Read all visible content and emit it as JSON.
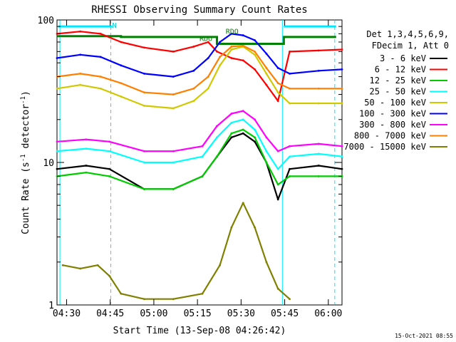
{
  "chart_data": {
    "type": "line",
    "title": "RHESSI Observing Summary Count Rates",
    "xlabel": "Start Time (13-Sep-08 04:26:42)",
    "ylabel_main": "Count Rate (s",
    "ylabel_sup": "-1",
    "ylabel_rest": " detector",
    "ylabel_end": ")",
    "ylog": true,
    "ylim": [
      1,
      100
    ],
    "xlim_minutes_from_start": [
      0,
      98
    ],
    "x_ticks": [
      {
        "label": "04:30",
        "t": 3.3
      },
      {
        "label": "04:45",
        "t": 18.3
      },
      {
        "label": "05:00",
        "t": 33.3
      },
      {
        "label": "05:15",
        "t": 48.3
      },
      {
        "label": "05:30",
        "t": 63.3
      },
      {
        "label": "05:45",
        "t": 78.3
      },
      {
        "label": "06:00",
        "t": 93.3
      }
    ],
    "y_ticks": [
      {
        "label": "1",
        "v": 1
      },
      {
        "label": "10",
        "v": 10
      },
      {
        "label": "100",
        "v": 100
      }
    ],
    "legend_header": [
      "Det 1,3,4,5,6,9,",
      "FDecim 1, Att 0"
    ],
    "legend_position": "right",
    "series": [
      {
        "name": "3 - 6 keV",
        "color": "#000000",
        "points": [
          [
            0,
            9
          ],
          [
            10,
            9.5
          ],
          [
            18,
            9
          ],
          [
            30,
            6.5
          ],
          [
            40,
            6.5
          ],
          [
            50,
            8
          ],
          [
            55,
            11
          ],
          [
            60,
            15
          ],
          [
            64,
            16
          ],
          [
            68,
            14
          ],
          [
            72,
            10
          ],
          [
            76,
            5.5
          ],
          [
            80,
            9
          ],
          [
            90,
            9.5
          ],
          [
            98,
            9
          ]
        ]
      },
      {
        "name": "6 - 12 keV",
        "color": "#ff0000",
        "points": [
          [
            0,
            80
          ],
          [
            8,
            83
          ],
          [
            15,
            80
          ],
          [
            22,
            70
          ],
          [
            30,
            64
          ],
          [
            40,
            60
          ],
          [
            47,
            65
          ],
          [
            52,
            70
          ],
          [
            55,
            60
          ],
          [
            60,
            54
          ],
          [
            64,
            52
          ],
          [
            68,
            45
          ],
          [
            72,
            35
          ],
          [
            76,
            27
          ],
          [
            80,
            60
          ],
          [
            90,
            61
          ],
          [
            98,
            62
          ]
        ]
      },
      {
        "name": "12 - 25 keV",
        "color": "#00cc00",
        "points": [
          [
            0,
            8
          ],
          [
            10,
            8.5
          ],
          [
            18,
            8
          ],
          [
            30,
            6.5
          ],
          [
            40,
            6.5
          ],
          [
            50,
            8
          ],
          [
            55,
            11
          ],
          [
            60,
            16
          ],
          [
            64,
            17
          ],
          [
            68,
            15
          ],
          [
            72,
            10
          ],
          [
            76,
            7
          ],
          [
            80,
            8
          ],
          [
            90,
            8
          ],
          [
            98,
            8
          ]
        ]
      },
      {
        "name": "25 - 50 keV",
        "color": "#00ffff",
        "points": [
          [
            0,
            12
          ],
          [
            10,
            12.5
          ],
          [
            18,
            12
          ],
          [
            30,
            10
          ],
          [
            40,
            10
          ],
          [
            50,
            11
          ],
          [
            55,
            15
          ],
          [
            60,
            19
          ],
          [
            64,
            20
          ],
          [
            68,
            17
          ],
          [
            72,
            12
          ],
          [
            76,
            9
          ],
          [
            80,
            11
          ],
          [
            90,
            11.5
          ],
          [
            98,
            11
          ]
        ]
      },
      {
        "name": "50 - 100 keV",
        "color": "#d0c800",
        "points": [
          [
            0,
            33
          ],
          [
            8,
            35
          ],
          [
            15,
            33
          ],
          [
            22,
            29
          ],
          [
            30,
            25
          ],
          [
            40,
            24
          ],
          [
            47,
            27
          ],
          [
            52,
            33
          ],
          [
            56,
            48
          ],
          [
            60,
            62
          ],
          [
            64,
            65
          ],
          [
            68,
            57
          ],
          [
            72,
            42
          ],
          [
            76,
            31
          ],
          [
            80,
            26
          ],
          [
            90,
            26
          ],
          [
            98,
            26
          ]
        ]
      },
      {
        "name": "100 - 300 keV",
        "color": "#0000ff",
        "points": [
          [
            0,
            54
          ],
          [
            8,
            57
          ],
          [
            15,
            55
          ],
          [
            22,
            48
          ],
          [
            30,
            42
          ],
          [
            40,
            40
          ],
          [
            47,
            44
          ],
          [
            52,
            54
          ],
          [
            56,
            70
          ],
          [
            60,
            80
          ],
          [
            64,
            78
          ],
          [
            68,
            72
          ],
          [
            72,
            58
          ],
          [
            76,
            46
          ],
          [
            80,
            42
          ],
          [
            90,
            44
          ],
          [
            98,
            45
          ]
        ]
      },
      {
        "name": "300 - 800 keV",
        "color": "#ff00ff",
        "points": [
          [
            0,
            14
          ],
          [
            10,
            14.5
          ],
          [
            18,
            14
          ],
          [
            30,
            12
          ],
          [
            40,
            12
          ],
          [
            50,
            13
          ],
          [
            55,
            18
          ],
          [
            60,
            22
          ],
          [
            64,
            23
          ],
          [
            68,
            20
          ],
          [
            72,
            15
          ],
          [
            76,
            12
          ],
          [
            80,
            13
          ],
          [
            90,
            13.5
          ],
          [
            98,
            13
          ]
        ]
      },
      {
        "name": "800 - 7000 keV",
        "color": "#ff8000",
        "points": [
          [
            0,
            40
          ],
          [
            8,
            42
          ],
          [
            15,
            40
          ],
          [
            22,
            36
          ],
          [
            30,
            31
          ],
          [
            40,
            30
          ],
          [
            47,
            33
          ],
          [
            52,
            40
          ],
          [
            56,
            55
          ],
          [
            60,
            65
          ],
          [
            64,
            66
          ],
          [
            68,
            60
          ],
          [
            72,
            46
          ],
          [
            76,
            36
          ],
          [
            80,
            33
          ],
          [
            90,
            33
          ],
          [
            98,
            33
          ]
        ]
      },
      {
        "name": "7000 - 15000 keV",
        "color": "#808000",
        "points": [
          [
            2,
            1.9
          ],
          [
            8,
            1.8
          ],
          [
            14,
            1.9
          ],
          [
            18,
            1.6
          ],
          [
            22,
            1.2
          ],
          [
            30,
            1.1
          ],
          [
            40,
            1.1
          ],
          [
            50,
            1.2
          ],
          [
            56,
            1.9
          ],
          [
            60,
            3.5
          ],
          [
            64,
            5.2
          ],
          [
            68,
            3.5
          ],
          [
            72,
            2
          ],
          [
            76,
            1.3
          ],
          [
            80,
            1.1
          ]
        ]
      }
    ],
    "annotations": [
      {
        "text": "N",
        "t": 19,
        "v": 88
      },
      {
        "text": "RDO",
        "t": 58,
        "v": 80
      },
      {
        "text": "RDO",
        "t": 49,
        "v": 71
      }
    ],
    "footer_timestamp": "15-Oct-2021 08:55"
  }
}
